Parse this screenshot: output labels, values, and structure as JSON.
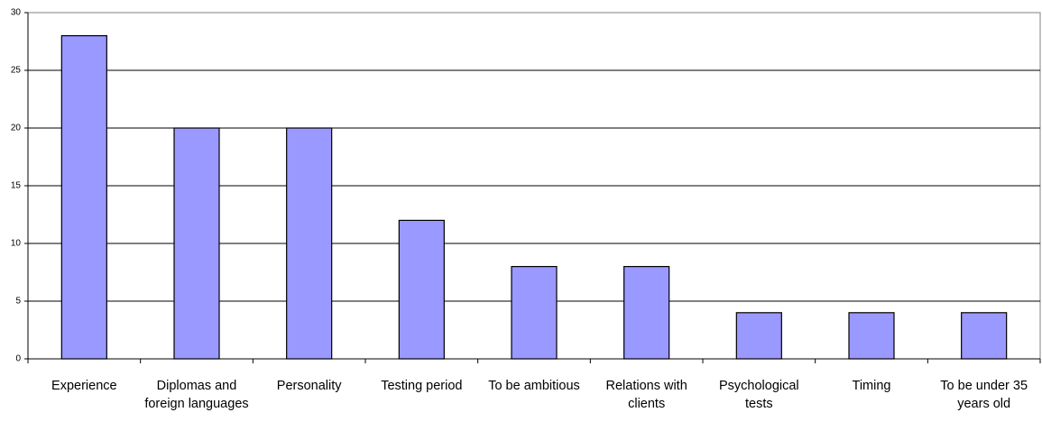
{
  "chart_data": {
    "type": "bar",
    "categories": [
      "Experience",
      "Diplomas and foreign languages",
      "Personality",
      "Testing period",
      "To be ambitious",
      "Relations with clients",
      "Psychological tests",
      "Timing",
      "To be under 35 years old"
    ],
    "values": [
      28,
      20,
      20,
      12,
      8,
      8,
      4,
      4,
      4
    ],
    "color": "#9999ff",
    "ylim": [
      0,
      30
    ],
    "yticks": [
      0,
      5,
      10,
      15,
      20,
      25,
      30
    ],
    "grid": true
  }
}
